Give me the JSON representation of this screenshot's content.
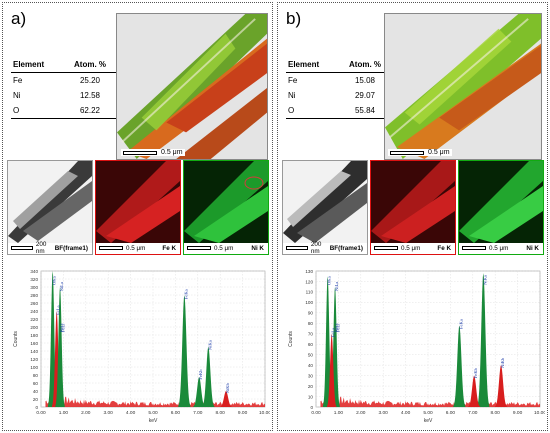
{
  "panels": [
    {
      "id": "a",
      "label": "a)",
      "table": {
        "header": [
          "Element",
          "Atom. %"
        ],
        "rows": [
          [
            "Fe",
            "25.20"
          ],
          [
            "Ni",
            "12.58"
          ],
          [
            "O",
            "62.22"
          ]
        ]
      },
      "map_scale": "0.5 μm",
      "tiles": [
        {
          "scale": "200 nm",
          "tag": "BF(frame1)"
        },
        {
          "scale": "0.5 μm",
          "tag": "Fe K"
        },
        {
          "scale": "0.5 μm",
          "tag": "Ni K"
        }
      ],
      "spectrum": {
        "y_ticks": [
          "0",
          "20",
          "40",
          "60",
          "80",
          "100",
          "120",
          "140",
          "160",
          "180",
          "200",
          "220",
          "240",
          "260",
          "280",
          "300",
          "320",
          "340"
        ],
        "x_ticks": [
          "0.00",
          "1.00",
          "2.00",
          "3.00",
          "4.00",
          "5.00",
          "6.00",
          "7.00",
          "8.00",
          "9.00",
          "10.00"
        ],
        "xlabel": "keV",
        "ylabel": "Counts",
        "peak_labels": [
          "OKa",
          "FeLa",
          "NiLa",
          "NiLl",
          "FeLl",
          "FeKa",
          "NiKa",
          "FeKb",
          "NiKb"
        ]
      }
    },
    {
      "id": "b",
      "label": "b)",
      "table": {
        "header": [
          "Element",
          "Atom. %"
        ],
        "rows": [
          [
            "Fe",
            "15.08"
          ],
          [
            "Ni",
            "29.07"
          ],
          [
            "O",
            "55.84"
          ]
        ]
      },
      "map_scale": "0.5 μm",
      "tiles": [
        {
          "scale": "200 nm",
          "tag": "BF(frame1)"
        },
        {
          "scale": "0.5 μm",
          "tag": "Fe K"
        },
        {
          "scale": "0.5 μm",
          "tag": "Ni K"
        }
      ],
      "spectrum": {
        "y_ticks": [
          "0",
          "10",
          "20",
          "30",
          "40",
          "50",
          "60",
          "70",
          "80",
          "90",
          "100",
          "110",
          "120",
          "130"
        ],
        "x_ticks": [
          "0.00",
          "1.00",
          "2.00",
          "3.00",
          "4.00",
          "5.00",
          "6.00",
          "7.00",
          "8.00",
          "9.00",
          "10.00"
        ],
        "xlabel": "keV",
        "ylabel": "Counts",
        "peak_labels": [
          "OKa",
          "NiLa",
          "FeLa",
          "NiLl",
          "FeLl",
          "FeKa",
          "NiKa",
          "FeKb",
          "NiKb"
        ]
      }
    }
  ],
  "chart_data": [
    {
      "type": "bar",
      "x_unit": "keV",
      "xlim": [
        0,
        10
      ],
      "ylim": [
        0,
        340
      ],
      "ylabel": "Counts",
      "xlabel": "keV",
      "peaks": [
        {
          "label": "OKa",
          "x": 0.52,
          "y": 340,
          "color": "#1a8a3a"
        },
        {
          "label": "FeLa",
          "x": 0.7,
          "y": 240,
          "color": "#d81e1e"
        },
        {
          "label": "NiLa",
          "x": 0.85,
          "y": 300,
          "color": "#1a8a3a"
        },
        {
          "label": "FeKa",
          "x": 6.4,
          "y": 280,
          "color": "#1a8a3a"
        },
        {
          "label": "NiKa",
          "x": 7.47,
          "y": 150,
          "color": "#1a8a3a"
        },
        {
          "label": "FeKb",
          "x": 7.06,
          "y": 75,
          "color": "#1a8a3a"
        },
        {
          "label": "NiKb",
          "x": 8.26,
          "y": 40,
          "color": "#d81e1e"
        }
      ]
    },
    {
      "type": "bar",
      "x_unit": "keV",
      "xlim": [
        0,
        10
      ],
      "ylim": [
        0,
        130
      ],
      "ylabel": "Counts",
      "xlabel": "keV",
      "peaks": [
        {
          "label": "OKa",
          "x": 0.52,
          "y": 125,
          "color": "#1a8a3a"
        },
        {
          "label": "NiLa",
          "x": 0.85,
          "y": 115,
          "color": "#1a8a3a"
        },
        {
          "label": "FeLa",
          "x": 0.7,
          "y": 70,
          "color": "#d81e1e"
        },
        {
          "label": "FeKa",
          "x": 6.4,
          "y": 78,
          "color": "#1a8a3a"
        },
        {
          "label": "NiKa",
          "x": 7.47,
          "y": 128,
          "color": "#1a8a3a"
        },
        {
          "label": "FeKb",
          "x": 7.06,
          "y": 30,
          "color": "#d81e1e"
        },
        {
          "label": "NiKb",
          "x": 8.26,
          "y": 40,
          "color": "#d81e1e"
        }
      ]
    }
  ]
}
